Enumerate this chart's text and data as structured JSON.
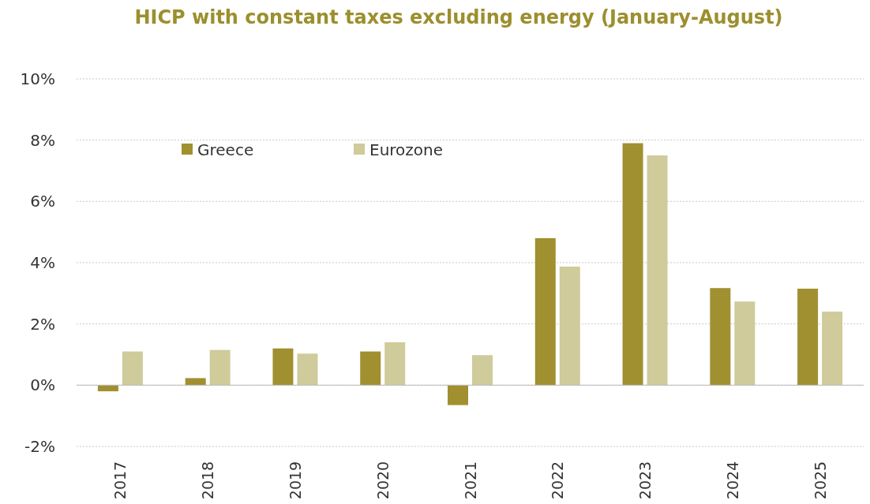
{
  "chart_data": {
    "type": "bar",
    "title": "HICP with constant taxes excluding energy (January-August)",
    "categories": [
      "2017",
      "2018",
      "2019",
      "2020",
      "2021",
      "2022",
      "2023",
      "2024",
      "2025"
    ],
    "series": [
      {
        "name": "Greece",
        "color": "#a09030",
        "values": [
          -0.2,
          0.23,
          1.2,
          1.1,
          -0.65,
          4.8,
          7.9,
          3.17,
          3.15
        ]
      },
      {
        "name": "Eurozone",
        "color": "#cfcb9a",
        "values": [
          1.1,
          1.15,
          1.03,
          1.4,
          0.98,
          3.87,
          7.5,
          2.73,
          2.4
        ]
      }
    ],
    "ylim": [
      -2,
      10
    ],
    "yticks": [
      {
        "value": -2,
        "label": "-2%"
      },
      {
        "value": 0,
        "label": "0%"
      },
      {
        "value": 2,
        "label": "2%"
      },
      {
        "value": 4,
        "label": "4%"
      },
      {
        "value": 6,
        "label": "6%"
      },
      {
        "value": 8,
        "label": "8%"
      },
      {
        "value": 10,
        "label": "10%"
      }
    ],
    "grid": "y",
    "legend": "top left"
  }
}
